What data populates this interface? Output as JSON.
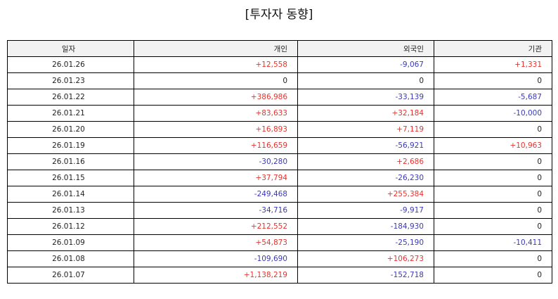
{
  "title": "[투자자 동향]",
  "colors": {
    "positive": "#e8332e",
    "negative": "#3a3ab8",
    "neutral": "#222222",
    "header_bg": "#f2f2f2",
    "border": "#000000"
  },
  "table": {
    "headers": [
      "일자",
      "개인",
      "외국인",
      "기관"
    ],
    "rows": [
      {
        "date": "26.01.26",
        "individual": "+12,558",
        "foreign": "-9,067",
        "institution": "+1,331"
      },
      {
        "date": "26.01.23",
        "individual": "0",
        "foreign": "0",
        "institution": "0"
      },
      {
        "date": "26.01.22",
        "individual": "+386,986",
        "foreign": "-33,139",
        "institution": "-5,687"
      },
      {
        "date": "26.01.21",
        "individual": "+83,633",
        "foreign": "+32,184",
        "institution": "-10,000"
      },
      {
        "date": "26.01.20",
        "individual": "+16,893",
        "foreign": "+7,119",
        "institution": "0"
      },
      {
        "date": "26.01.19",
        "individual": "+116,659",
        "foreign": "-56,921",
        "institution": "+10,963"
      },
      {
        "date": "26.01.16",
        "individual": "-30,280",
        "foreign": "+2,686",
        "institution": "0"
      },
      {
        "date": "26.01.15",
        "individual": "+37,794",
        "foreign": "-26,230",
        "institution": "0"
      },
      {
        "date": "26.01.14",
        "individual": "-249,468",
        "foreign": "+255,384",
        "institution": "0"
      },
      {
        "date": "26.01.13",
        "individual": "-34,716",
        "foreign": "-9,917",
        "institution": "0"
      },
      {
        "date": "26.01.12",
        "individual": "+212,552",
        "foreign": "-184,930",
        "institution": "0"
      },
      {
        "date": "26.01.09",
        "individual": "+54,873",
        "foreign": "-25,190",
        "institution": "-10,411"
      },
      {
        "date": "26.01.08",
        "individual": "-109,690",
        "foreign": "+106,273",
        "institution": "0"
      },
      {
        "date": "26.01.07",
        "individual": "+1,138,219",
        "foreign": "-152,718",
        "institution": "0"
      }
    ]
  }
}
